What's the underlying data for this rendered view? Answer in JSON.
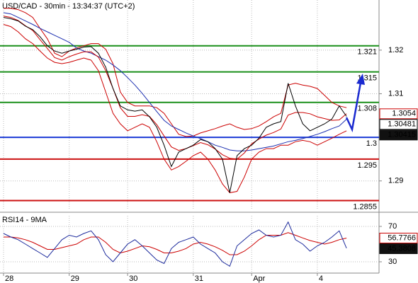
{
  "chart_data": [
    {
      "type": "line",
      "title": "USD/CAD - 30min - 13:34:37 (UTC+2)",
      "ylim": [
        1.2833,
        1.3315
      ],
      "yticks": [
        1.32,
        1.31,
        {
          "value": 1.3,
          "label": "1.30"
        },
        1.29
      ],
      "grid": true,
      "levels": [
        1.321,
        1.315,
        1.308,
        1.3,
        1.295,
        1.2855
      ],
      "level_colors": [
        "#1a8f1a",
        "#1a8f1a",
        "#1a8f1a",
        "#1a3ad6",
        "#cc1111",
        "#cc1111"
      ],
      "series": [
        {
          "color": "#cc0000",
          "values": [
            1.3296,
            1.3296,
            1.3293,
            1.3286,
            1.3275,
            1.325,
            1.3226,
            1.3193,
            1.3185,
            1.3198,
            1.3205,
            1.321,
            1.3215,
            1.3215,
            1.3202,
            1.3169,
            1.3104,
            1.308,
            1.3072,
            1.3072,
            1.3072,
            1.3068,
            1.3055,
            1.3031,
            1.3007,
            1.3002,
            1.3003,
            1.301,
            1.3015,
            1.302,
            1.3026,
            1.3031,
            1.3023,
            1.3018,
            1.302,
            1.3026,
            1.3036,
            1.3047,
            1.3055,
            1.312,
            1.3124,
            1.312,
            1.3117,
            1.3112,
            1.3096,
            1.308,
            1.3072,
            1.3068
          ]
        },
        {
          "color": "#cc0000",
          "values": [
            1.3259,
            1.3254,
            1.3242,
            1.3226,
            1.3215,
            1.3198,
            1.3182,
            1.3172,
            1.3169,
            1.3172,
            1.3177,
            1.3182,
            1.3177,
            1.3153,
            1.3104,
            1.3055,
            1.3031,
            1.3015,
            1.3023,
            1.3031,
            1.3023,
            1.299,
            1.295,
            1.2925,
            1.2933,
            1.2945,
            1.2958,
            1.2966,
            1.295,
            1.2925,
            1.2893,
            1.2873,
            1.2876,
            1.2909,
            1.295,
            1.2966,
            1.2974,
            1.2974,
            1.2982,
            1.2982,
            1.299,
            1.2993,
            1.299,
            1.2982,
            1.299,
            1.2998,
            1.3007,
            1.3015
          ]
        },
        {
          "color": "#1c2fb0",
          "last_label": "filled",
          "values": [
            1.3286,
            1.3283,
            1.3275,
            1.3267,
            1.3259,
            1.325,
            1.3242,
            1.3234,
            1.3226,
            1.3218,
            1.3205,
            1.3198,
            1.3193,
            1.3185,
            1.3177,
            1.3166,
            1.3153,
            1.3137,
            1.312,
            1.3101,
            1.308,
            1.3059,
            1.3039,
            1.3026,
            1.3018,
            1.301,
            1.3003,
            1.2997,
            1.299,
            1.2982,
            1.2977,
            1.2971,
            1.2969,
            1.2969,
            1.2971,
            1.2974,
            1.2977,
            1.298,
            1.2985,
            1.299,
            1.2993,
            1.2997,
            1.3002,
            1.3007,
            1.3013,
            1.302,
            1.3026,
            1.30415
          ]
        },
        {
          "color": "#cc0000",
          "last_label": "outline",
          "values": [
            1.3278,
            1.3275,
            1.3268,
            1.3256,
            1.3245,
            1.3224,
            1.3204,
            1.3183,
            1.3177,
            1.3185,
            1.3191,
            1.3196,
            1.3196,
            1.3184,
            1.3153,
            1.3112,
            1.3068,
            1.3048,
            1.3048,
            1.3052,
            1.3048,
            1.3029,
            1.3003,
            1.2978,
            1.297,
            1.2974,
            1.2981,
            1.2988,
            1.2983,
            1.2973,
            1.296,
            1.2952,
            1.295,
            1.2964,
            1.2985,
            1.2996,
            1.3005,
            1.3011,
            1.3019,
            1.3051,
            1.3057,
            1.3057,
            1.3054,
            1.3047,
            1.3043,
            1.3039,
            1.304,
            1.3054
          ]
        },
        {
          "color": "#000000",
          "last_label": "outline",
          "values": [
            1.3275,
            1.3272,
            1.3267,
            1.3255,
            1.3247,
            1.3231,
            1.321,
            1.3198,
            1.3193,
            1.3198,
            1.3202,
            1.3207,
            1.3208,
            1.3193,
            1.3161,
            1.3112,
            1.3072,
            1.3063,
            1.306,
            1.3063,
            1.3047,
            1.3023,
            1.2982,
            1.2933,
            1.2966,
            1.2974,
            1.2982,
            1.2995,
            1.299,
            1.2974,
            1.295,
            1.2873,
            1.2958,
            1.2974,
            1.2982,
            1.2998,
            1.3023,
            1.3031,
            1.3036,
            1.3124,
            1.3072,
            1.3031,
            1.3015,
            1.3023,
            1.3031,
            1.3042,
            1.3072,
            1.30481
          ]
        }
      ]
    },
    {
      "type": "line",
      "title": "RSI14 - 9MA",
      "ylim": [
        18,
        82
      ],
      "yticks": [
        70,
        30
      ],
      "grid": true,
      "categories": [
        "28",
        null,
        null,
        null,
        null,
        null,
        null,
        null,
        null,
        "29",
        null,
        null,
        null,
        null,
        null,
        null,
        null,
        "30",
        null,
        null,
        null,
        null,
        null,
        null,
        null,
        null,
        "31",
        null,
        null,
        null,
        null,
        null,
        null,
        null,
        "Apr",
        null,
        null,
        null,
        null,
        null,
        null,
        null,
        null,
        "4",
        null,
        null,
        null,
        null
      ],
      "series": [
        {
          "color": "#cc0000",
          "last_label": "outline",
          "values": [
            58,
            58,
            57,
            55,
            52,
            48,
            44,
            44,
            46,
            48,
            50,
            55,
            58,
            58,
            52,
            44,
            40,
            42,
            45,
            48,
            47,
            44,
            40,
            40,
            42,
            45,
            50,
            52,
            50,
            47,
            43,
            38,
            38,
            42,
            48,
            55,
            60,
            60,
            60,
            63,
            60,
            57,
            54,
            52,
            50,
            52,
            55,
            56.7766
          ]
        },
        {
          "color": "#1c2a9c",
          "last_label": "filled",
          "values": [
            62,
            58,
            55,
            50,
            45,
            40,
            35,
            45,
            55,
            60,
            58,
            62,
            65,
            55,
            38,
            30,
            40,
            50,
            55,
            48,
            40,
            32,
            28,
            45,
            52,
            55,
            58,
            50,
            45,
            40,
            30,
            25,
            48,
            55,
            62,
            66,
            60,
            58,
            60,
            75,
            55,
            50,
            42,
            48,
            52,
            58,
            65,
            45.3808
          ]
        }
      ]
    }
  ]
}
